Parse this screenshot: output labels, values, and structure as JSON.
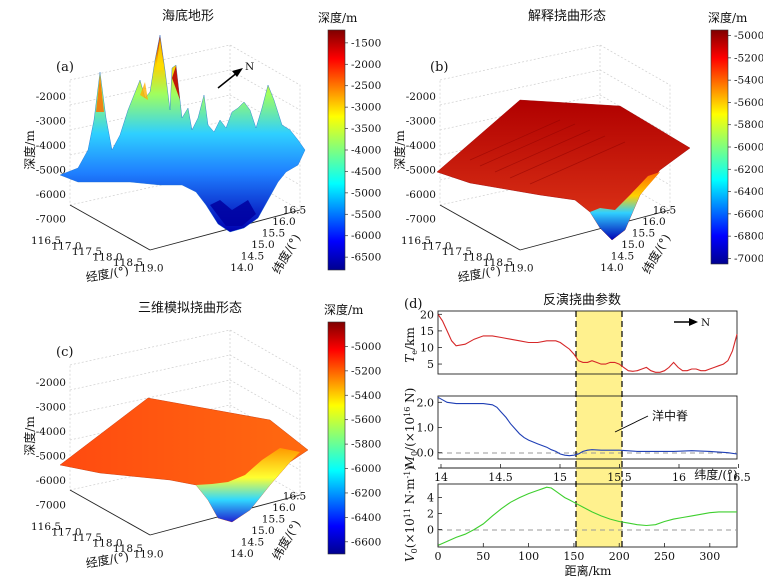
{
  "chart_data": [
    {
      "type": "surface3d",
      "panel": "(a)",
      "title": "海底地形",
      "xlabel": "经度/(°)",
      "ylabel": "纬度/(°)",
      "zlabel": "深度/m",
      "x_ticks": [
        "116.5",
        "117.0",
        "117.5",
        "118.0",
        "118.5",
        "119.0"
      ],
      "y_ticks": [
        "14.0",
        "14.5",
        "15.0",
        "15.5",
        "16.0",
        "16.5"
      ],
      "z_ticks": [
        "-2000",
        "-3000",
        "-4000",
        "-5000",
        "-6000",
        "-7000"
      ],
      "colorbar_title": "深度/m",
      "colorbar_ticks": [
        "-1500",
        "-2000",
        "-2500",
        "-3000",
        "-3500",
        "-4000",
        "-4500",
        "-5000",
        "-5500",
        "-6000",
        "-6500"
      ],
      "colorbar_range": [
        -6800,
        -1200
      ],
      "north_label": "N"
    },
    {
      "type": "surface3d",
      "panel": "(b)",
      "title": "解释挠曲形态",
      "xlabel": "经度/(°)",
      "ylabel": "纬度/(°)",
      "zlabel": "深度/m",
      "x_ticks": [
        "116.5",
        "117.0",
        "117.5",
        "118.0",
        "118.5",
        "119.0"
      ],
      "y_ticks": [
        "14.0",
        "14.5",
        "15.0",
        "15.5",
        "16.0",
        "16.5"
      ],
      "z_ticks": [
        "-2000",
        "-3000",
        "-4000",
        "-5000",
        "-6000",
        "-7000"
      ],
      "colorbar_title": "深度/m",
      "colorbar_ticks": [
        "-5000",
        "-5200",
        "-5400",
        "-5600",
        "-5800",
        "-6000",
        "-6200",
        "-6400",
        "-6600",
        "-6800",
        "-7000"
      ],
      "colorbar_range": [
        -7050,
        -4950
      ]
    },
    {
      "type": "surface3d",
      "panel": "(c)",
      "title": "三维模拟挠曲形态",
      "xlabel": "经度/(°)",
      "ylabel": "纬度/(°)",
      "zlabel": "深度/m",
      "x_ticks": [
        "116.5",
        "117.0",
        "117.5",
        "118.0",
        "118.5",
        "119.0"
      ],
      "y_ticks": [
        "14.0",
        "14.5",
        "15.0",
        "15.5",
        "16.0",
        "16.5"
      ],
      "z_ticks": [
        "-2000",
        "-3000",
        "-4000",
        "-5000",
        "-6000",
        "-7000"
      ],
      "colorbar_title": "深度/m",
      "colorbar_ticks": [
        "-5000",
        "-5200",
        "-5400",
        "-5600",
        "-5800",
        "-6000",
        "-6200",
        "-6400",
        "-6600"
      ],
      "colorbar_range": [
        -6700,
        -4800
      ]
    },
    {
      "type": "line",
      "panel": "(d)",
      "title": "反演挠曲参数",
      "xlabel": "距离/km",
      "x_range": [
        0,
        330
      ],
      "x_ticks": [
        "0",
        "50",
        "100",
        "150",
        "200",
        "250",
        "300"
      ],
      "lat_label": "纬度/(°)",
      "lat_ticks": [
        "14",
        "14.5",
        "15",
        "15.5",
        "16",
        "16.5"
      ],
      "north_label": "N",
      "ridge_label": "洋中脊",
      "highlight_range": [
        150,
        200
      ],
      "series": [
        {
          "name": "Te",
          "ylabel": "Te/km",
          "color": "#d62728",
          "ylim": [
            2,
            21
          ],
          "y_ticks": [
            "5",
            "10",
            "15",
            "20"
          ],
          "x": [
            0,
            5,
            10,
            15,
            20,
            30,
            40,
            50,
            60,
            70,
            80,
            90,
            100,
            110,
            120,
            130,
            135,
            140,
            145,
            150,
            155,
            160,
            165,
            170,
            175,
            180,
            185,
            190,
            195,
            200,
            205,
            210,
            215,
            220,
            225,
            230,
            235,
            240,
            245,
            250,
            255,
            260,
            265,
            270,
            275,
            280,
            285,
            290,
            295,
            300,
            305,
            310,
            315,
            320,
            325,
            330
          ],
          "values": [
            20,
            18,
            15,
            12,
            10.5,
            11,
            12.5,
            13.5,
            13.5,
            13,
            12.5,
            12,
            11.5,
            11.5,
            12,
            12,
            11.5,
            10.5,
            9.5,
            8,
            6,
            5.5,
            5.5,
            6,
            5.5,
            5,
            5,
            5.5,
            5.5,
            5,
            4,
            3,
            2.8,
            3,
            3.5,
            4,
            3,
            2.5,
            2.5,
            3,
            4,
            5.5,
            4,
            3,
            3,
            3.5,
            3.5,
            3,
            3,
            3.5,
            4,
            4.5,
            5,
            6,
            9,
            14
          ]
        },
        {
          "name": "M0",
          "ylabel": "M0/(×10^16 N)",
          "color": "#1f3fb5",
          "ylim": [
            -0.25,
            2.25
          ],
          "y_ticks": [
            "0.0",
            "1.0",
            "2.0"
          ],
          "x": [
            0,
            5,
            10,
            20,
            30,
            40,
            50,
            60,
            65,
            70,
            75,
            80,
            85,
            90,
            95,
            100,
            110,
            120,
            125,
            130,
            135,
            140,
            145,
            150,
            155,
            160,
            165,
            170,
            180,
            190,
            200,
            220,
            240,
            260,
            280,
            300,
            320,
            330
          ],
          "values": [
            2.2,
            2.1,
            2.0,
            1.95,
            1.95,
            1.95,
            1.95,
            1.9,
            1.8,
            1.6,
            1.4,
            1.15,
            0.95,
            0.75,
            0.6,
            0.5,
            0.35,
            0.22,
            0.12,
            0.05,
            -0.05,
            -0.1,
            -0.12,
            -0.1,
            -0.05,
            0.05,
            0.1,
            0.12,
            0.1,
            0.1,
            0.1,
            0.05,
            0.05,
            0.05,
            0.08,
            0.05,
            0.0,
            -0.05
          ]
        },
        {
          "name": "V0",
          "ylabel": "V0(×10^11 N·m^-1)",
          "color": "#3ecf2e",
          "ylim": [
            -2.2,
            5.7
          ],
          "y_ticks": [
            "0",
            "2",
            "4"
          ],
          "x": [
            0,
            10,
            20,
            30,
            40,
            50,
            60,
            70,
            80,
            90,
            100,
            110,
            115,
            120,
            125,
            130,
            135,
            140,
            145,
            150,
            155,
            160,
            165,
            170,
            180,
            190,
            200,
            210,
            220,
            230,
            240,
            250,
            260,
            270,
            280,
            290,
            300,
            310,
            320,
            330
          ],
          "values": [
            -2,
            -1.5,
            -1,
            -0.6,
            0,
            0.7,
            1.7,
            2.6,
            3.4,
            4.0,
            4.5,
            4.9,
            5.1,
            5.3,
            5.2,
            4.8,
            4.4,
            4.0,
            3.7,
            3.4,
            3.1,
            2.8,
            2.5,
            2.2,
            1.7,
            1.3,
            1.0,
            0.8,
            0.6,
            0.5,
            0.6,
            1.0,
            1.3,
            1.5,
            1.7,
            1.9,
            2.1,
            2.2,
            2.2,
            2.2
          ]
        }
      ]
    }
  ]
}
